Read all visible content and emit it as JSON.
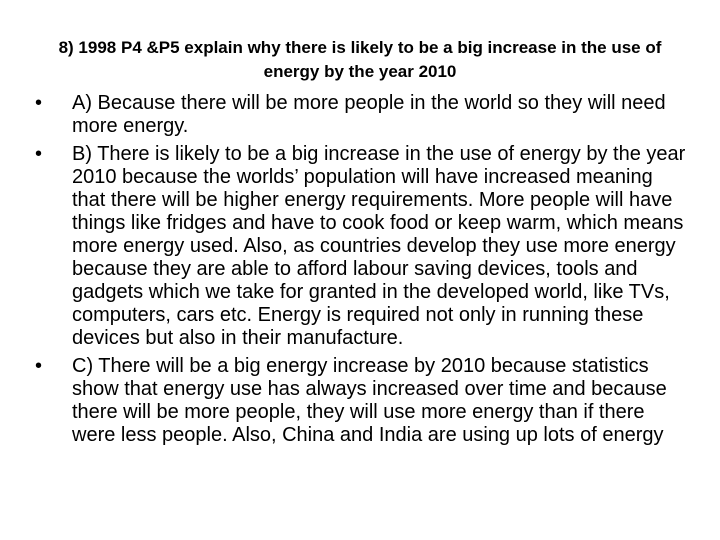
{
  "header": {
    "title": "8) 1998 P4 &P5 explain why there is likely to be a big increase in the use of energy by the year 2010"
  },
  "bullets": [
    "A) Because there will be more people in the world so they will need more energy.",
    "B) There is likely to be a big increase in the use of energy by the year 2010 because the worlds’ population will have increased meaning that there will be higher energy requirements. More people will have things like fridges and have to cook food or keep warm, which means more energy used.  Also, as countries develop they use more energy because they are able to afford labour saving devices, tools and gadgets which we take for granted in the developed world, like TVs, computers, cars etc. Energy is required not only in running these devices but also in their manufacture.",
    "C) There will be a big energy increase by 2010 because statistics show that energy use has always increased over time and because there will be more people, they will use more energy than if there were less people. Also, China and India are using up lots of energy"
  ]
}
